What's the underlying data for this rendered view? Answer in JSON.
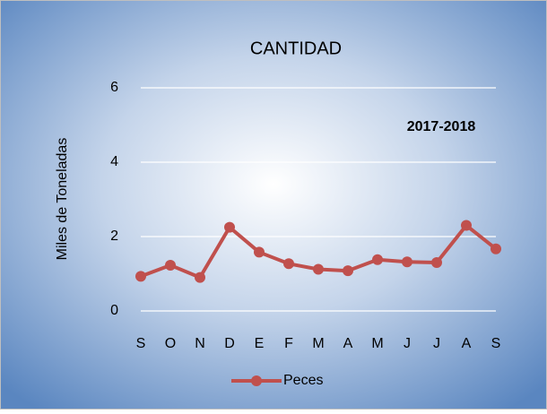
{
  "chart_data": {
    "type": "line",
    "title": "CANTIDAD",
    "y_label": "Miles de Toneladas",
    "annotation": "2017-2018",
    "categories": [
      "S",
      "O",
      "N",
      "D",
      "E",
      "F",
      "M",
      "A",
      "M",
      "J",
      "J",
      "A",
      "S"
    ],
    "series": [
      {
        "name": "Peces",
        "color": "#c0504d",
        "values": [
          0.93,
          1.23,
          0.9,
          2.25,
          1.58,
          1.27,
          1.12,
          1.08,
          1.38,
          1.32,
          1.3,
          2.3,
          1.67
        ]
      }
    ],
    "ylim": [
      0,
      6
    ],
    "yticks": [
      0,
      2,
      4,
      6
    ],
    "grid": true,
    "legend": "bottom"
  }
}
